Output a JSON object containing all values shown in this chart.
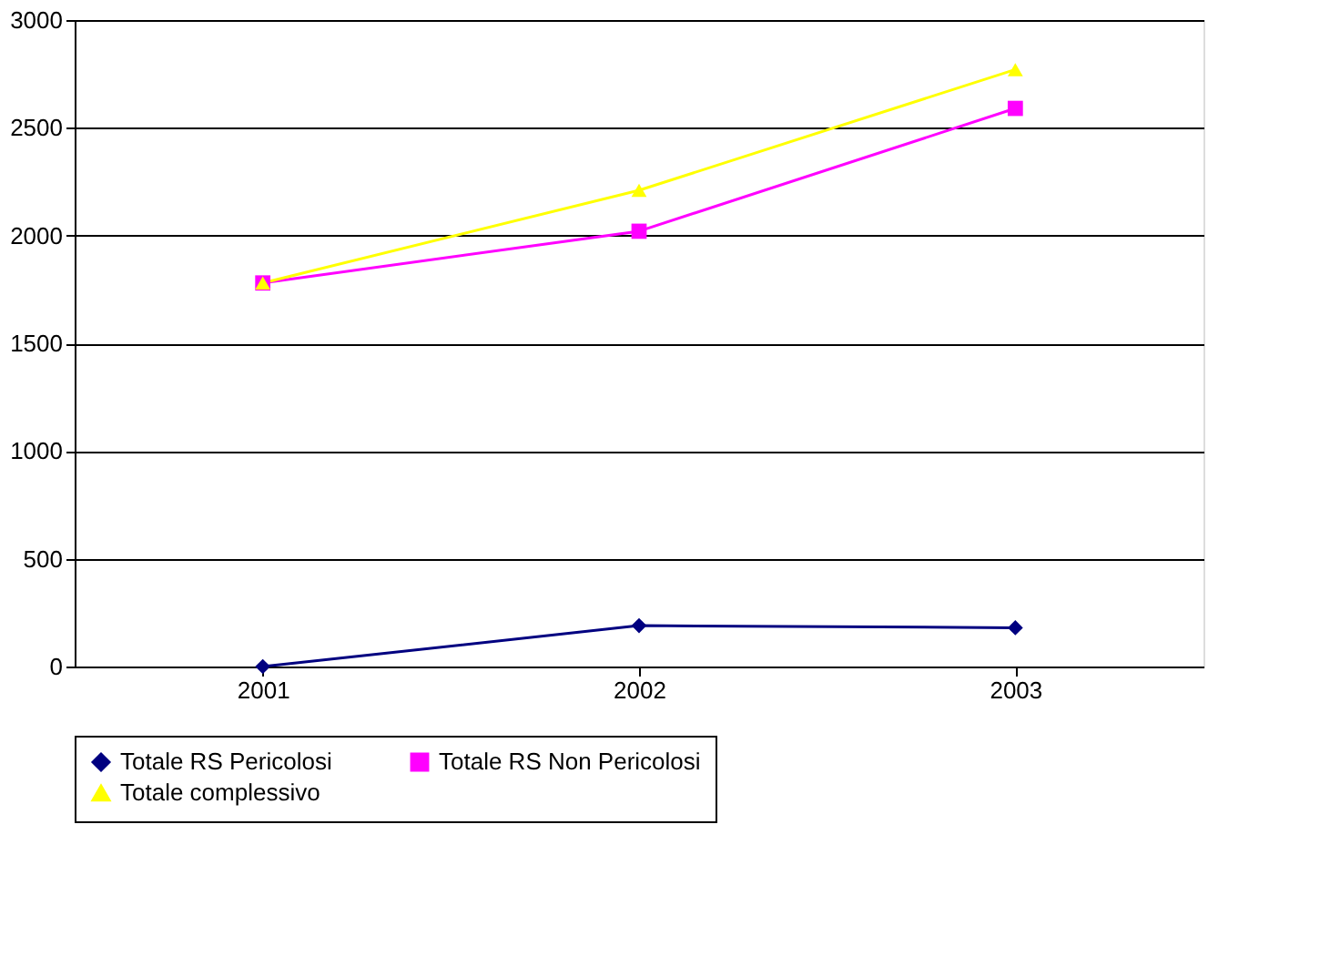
{
  "chart_data": {
    "type": "line",
    "categories": [
      "2001",
      "2002",
      "2003"
    ],
    "series": [
      {
        "name": "Totale RS Pericolosi",
        "color": "#000080",
        "marker": "diamond",
        "values": [
          0,
          190,
          180
        ]
      },
      {
        "name": "Totale RS Non Pericolosi",
        "color": "#ff00ff",
        "marker": "square",
        "values": [
          1780,
          2020,
          2590
        ]
      },
      {
        "name": "Totale complessivo",
        "color": "#ffff00",
        "marker": "triangle",
        "values": [
          1780,
          2210,
          2770
        ]
      }
    ],
    "ylim": [
      0,
      3000
    ],
    "yticks": [
      0,
      500,
      1000,
      1500,
      2000,
      2500,
      3000
    ],
    "grid": "y",
    "legend": "bottom"
  }
}
